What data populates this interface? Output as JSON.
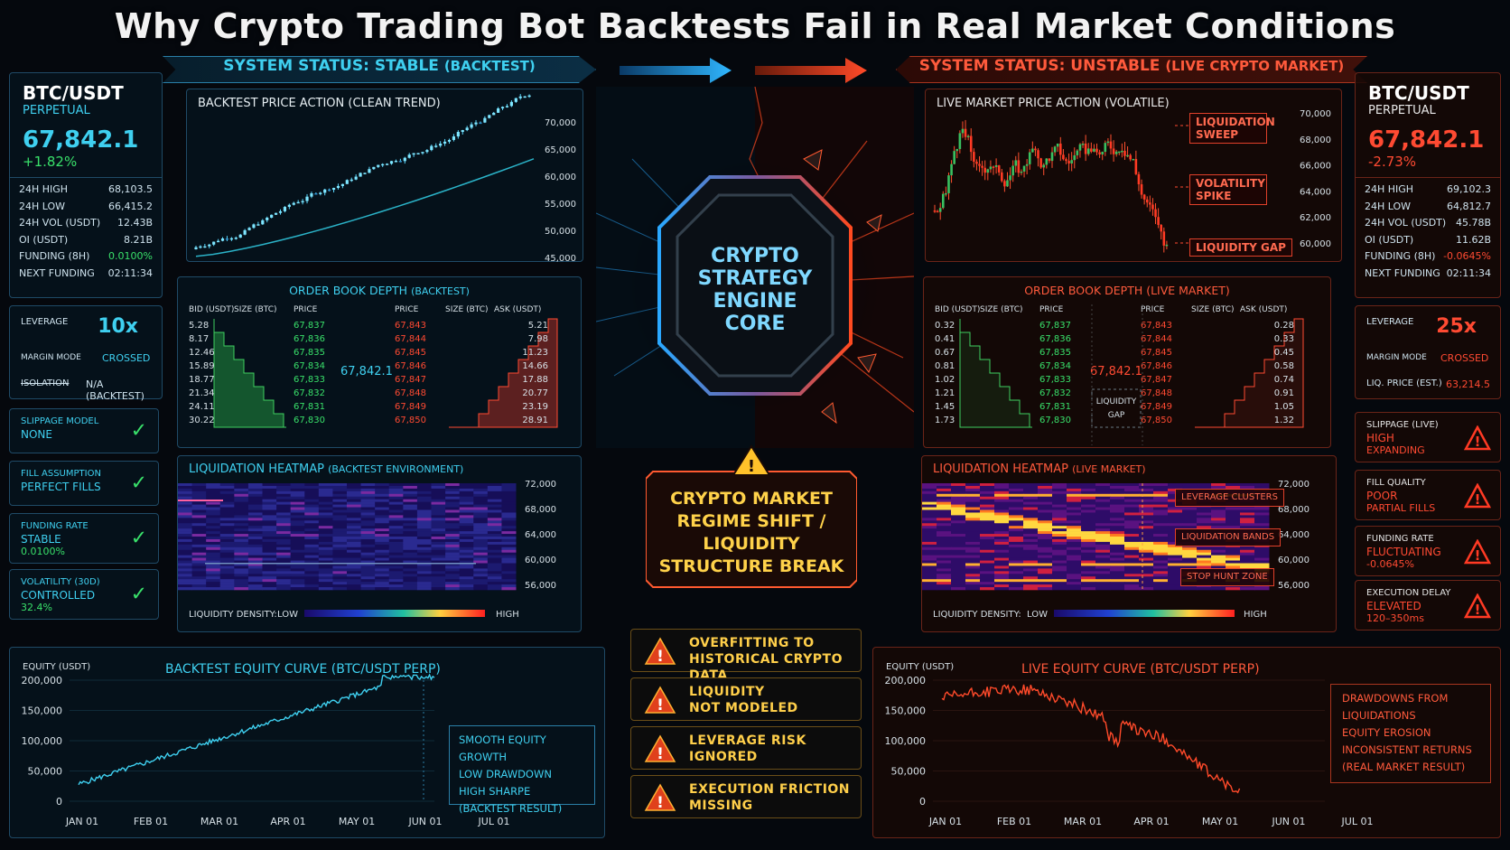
{
  "title": "Why Crypto Trading Bot Backtests Fail in Real Market Conditions",
  "status_left": {
    "label": "SYSTEM STATUS: STABLE",
    "suffix": "(BACKTEST)"
  },
  "status_right": {
    "label": "SYSTEM STATUS: UNSTABLE",
    "suffix": "(LIVE CRYPTO MARKET)"
  },
  "left_ticker": {
    "pair": "BTC/USDT",
    "type": "PERPETUAL",
    "price": "67,842.1",
    "change": "+1.82%",
    "stats": [
      {
        "label": "24H HIGH",
        "value": "68,103.5"
      },
      {
        "label": "24H LOW",
        "value": "66,415.2"
      },
      {
        "label": "24H VOL (USDT)",
        "value": "12.43B"
      },
      {
        "label": "OI (USDT)",
        "value": "8.21B"
      },
      {
        "label": "FUNDING (8H)",
        "value": "0.0100%"
      },
      {
        "label": "NEXT FUNDING",
        "value": "02:11:34"
      }
    ]
  },
  "right_ticker": {
    "pair": "BTC/USDT",
    "type": "PERPETUAL",
    "price": "67,842.1",
    "change": "-2.73%",
    "stats": [
      {
        "label": "24H HIGH",
        "value": "69,102.3"
      },
      {
        "label": "24H LOW",
        "value": "64,812.7"
      },
      {
        "label": "24H VOL (USDT)",
        "value": "45.78B"
      },
      {
        "label": "OI (USDT)",
        "value": "11.62B"
      },
      {
        "label": "FUNDING (8H)",
        "value": "-0.0645%"
      },
      {
        "label": "NEXT FUNDING",
        "value": "02:11:34"
      }
    ]
  },
  "left_leverage": {
    "label": "LEVERAGE",
    "value": "10x",
    "margin_label": "MARGIN MODE",
    "margin_value": "CROSSED",
    "iso_label": "ISOLATION",
    "iso_value": "N/A (BACKTEST)"
  },
  "right_leverage": {
    "label": "LEVERAGE",
    "value": "25x",
    "margin_label": "MARGIN MODE",
    "margin_value": "CROSSED",
    "liq_label": "LIQ. PRICE (EST.)",
    "liq_value": "63,214.5"
  },
  "left_cards": [
    {
      "label": "SLIPPAGE MODEL",
      "value": "NONE"
    },
    {
      "label": "FILL ASSUMPTION",
      "value": "PERFECT FILLS"
    },
    {
      "label": "FUNDING RATE",
      "value": "STABLE",
      "extra": "0.0100%"
    },
    {
      "label": "VOLATILITY (30D)",
      "value": "CONTROLLED",
      "extra": "32.4%"
    }
  ],
  "right_cards": [
    {
      "label": "SLIPPAGE (LIVE)",
      "value": "HIGH",
      "extra": "EXPANDING"
    },
    {
      "label": "FILL QUALITY",
      "value": "POOR",
      "extra": "PARTIAL FILLS"
    },
    {
      "label": "FUNDING RATE",
      "value": "FLUCTUATING",
      "extra": "-0.0645%"
    },
    {
      "label": "EXECUTION DELAY",
      "value": "ELEVATED",
      "extra": "120–350ms"
    }
  ],
  "backtest_price": {
    "title": "BACKTEST PRICE ACTION (CLEAN TREND)",
    "ticks": [
      "70,000",
      "65,000",
      "60,000",
      "55,000",
      "50,000",
      "45,000"
    ]
  },
  "live_price": {
    "title": "LIVE MARKET PRICE ACTION (VOLATILE)",
    "ticks": [
      "70,000",
      "68,000",
      "66,000",
      "64,000",
      "62,000",
      "60,000"
    ],
    "tags": [
      "LIQUIDATION SWEEP",
      "VOLATILITY SPIKE",
      "LIQUIDITY GAP"
    ]
  },
  "orderbook_left": {
    "title": "ORDER BOOK DEPTH",
    "suffix": "(BACKTEST)",
    "mid": "67,842.1",
    "headers": [
      "BID (USDT)",
      "SIZE (BTC)",
      "PRICE",
      "PRICE",
      "SIZE (BTC)",
      "ASK (USDT)"
    ],
    "bids": [
      [
        "5.28",
        "67,837"
      ],
      [
        "8.17",
        "67,836"
      ],
      [
        "12.46",
        "67,835"
      ],
      [
        "15.89",
        "67,834"
      ],
      [
        "18.77",
        "67,833"
      ],
      [
        "21.34",
        "67,832"
      ],
      [
        "24.11",
        "67,831"
      ],
      [
        "30.22",
        "67,830"
      ]
    ],
    "asks": [
      [
        "67,843",
        "5.21"
      ],
      [
        "67,844",
        "7.98"
      ],
      [
        "67,845",
        "11.23"
      ],
      [
        "67,846",
        "14.66"
      ],
      [
        "67,847",
        "17.88"
      ],
      [
        "67,848",
        "20.77"
      ],
      [
        "67,849",
        "23.19"
      ],
      [
        "67,850",
        "28.91"
      ]
    ]
  },
  "orderbook_right": {
    "title": "ORDER BOOK DEPTH (LIVE MARKET)",
    "mid": "67,842.1",
    "gap_label": "LIQUIDITY GAP",
    "headers": [
      "BID (USDT)",
      "SIZE (BTC)",
      "PRICE",
      "PRICE",
      "SIZE (BTC)",
      "ASK (USDT)"
    ],
    "bids": [
      [
        "0.32",
        "67,837"
      ],
      [
        "0.41",
        "67,836"
      ],
      [
        "0.67",
        "67,835"
      ],
      [
        "0.81",
        "67,834"
      ],
      [
        "1.02",
        "67,833"
      ],
      [
        "1.21",
        "67,832"
      ],
      [
        "1.45",
        "67,831"
      ],
      [
        "1.73",
        "67,830"
      ]
    ],
    "asks": [
      [
        "67,843",
        "0.28"
      ],
      [
        "67,844",
        "0.33"
      ],
      [
        "67,845",
        "0.45"
      ],
      [
        "67,846",
        "0.58"
      ],
      [
        "67,847",
        "0.74"
      ],
      [
        "67,848",
        "0.91"
      ],
      [
        "67,849",
        "1.05"
      ],
      [
        "67,850",
        "1.32"
      ]
    ]
  },
  "heatmap_left": {
    "title": "LIQUIDATION HEATMAP",
    "suffix": "(BACKTEST ENVIRONMENT)",
    "ticks": [
      "72,000",
      "68,000",
      "64,000",
      "60,000",
      "56,000"
    ],
    "density": "LIQUIDITY DENSITY:",
    "low": "LOW",
    "high": "HIGH"
  },
  "heatmap_right": {
    "title": "LIQUIDATION HEATMAP",
    "suffix": "(LIVE MARKET)",
    "ticks": [
      "72,000",
      "68,000",
      "64,000",
      "60,000",
      "56,000"
    ],
    "density": "LIQUIDITY DENSITY:",
    "low": "LOW",
    "high": "HIGH",
    "tags": [
      "LEVERAGE CLUSTERS",
      "LIQUIDATION BANDS",
      "STOP HUNT ZONE"
    ]
  },
  "core": {
    "l1": "CRYPTO",
    "l2": "STRATEGY",
    "l3": "ENGINE",
    "l4": "CORE"
  },
  "regime": {
    "l1": "CRYPTO MARKET",
    "l2": "REGIME SHIFT /",
    "l3": "LIQUIDITY",
    "l4": "STRUCTURE BREAK"
  },
  "warnings": [
    {
      "l1": "OVERFITTING TO",
      "l2": "HISTORICAL CRYPTO DATA"
    },
    {
      "l1": "LIQUIDITY",
      "l2": "NOT MODELED"
    },
    {
      "l1": "LEVERAGE RISK",
      "l2": "IGNORED"
    },
    {
      "l1": "EXECUTION FRICTION",
      "l2": "MISSING"
    }
  ],
  "equity_left": {
    "title": "BACKTEST EQUITY CURVE (BTC/USDT PERP)",
    "ylabel": "EQUITY (USDT)",
    "yticks": [
      "200,000",
      "150,000",
      "100,000",
      "50,000",
      "0"
    ],
    "xticks": [
      "JAN 01",
      "FEB 01",
      "MAR 01",
      "APR 01",
      "MAY 01",
      "JUN 01",
      "JUL 01"
    ],
    "notes": [
      "SMOOTH EQUITY GROWTH",
      "LOW DRAWDOWN",
      "HIGH SHARPE",
      "(BACKTEST RESULT)"
    ]
  },
  "equity_right": {
    "title": "LIVE  EQUITY CURVE (BTC/USDT PERP)",
    "ylabel": "EQUITY (USDT)",
    "yticks": [
      "200,000",
      "150,000",
      "100,000",
      "50,000",
      "0"
    ],
    "xticks": [
      "JAN 01",
      "FEB 01",
      "MAR 01",
      "APR 01",
      "MAY 01",
      "JUN 01",
      "JUL 01"
    ],
    "notes": [
      "DRAWDOWNS FROM",
      "LIQUIDATIONS",
      "EQUITY EROSION",
      "INCONSISTENT RETURNS",
      "(REAL MARKET RESULT)"
    ]
  },
  "colors": {
    "cyan": "#3fd0f0",
    "red": "#ff4a32",
    "green": "#39e06a",
    "yellow": "#ffd24a"
  }
}
